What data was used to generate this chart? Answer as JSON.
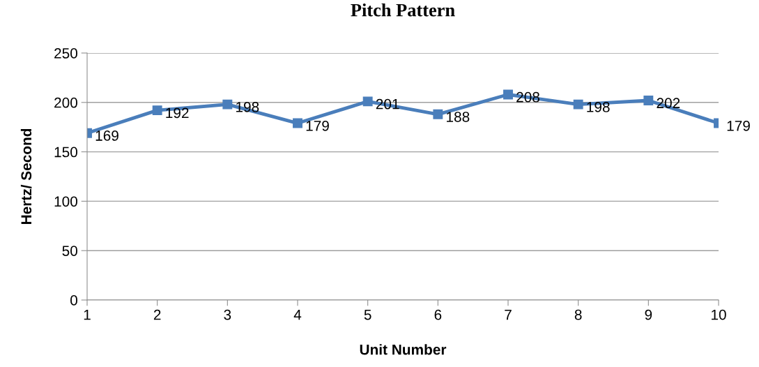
{
  "chart_data": {
    "type": "line",
    "title": "Pitch Pattern",
    "xlabel": "Unit Number",
    "ylabel": "Hertz/ Second",
    "categories": [
      "1",
      "2",
      "3",
      "4",
      "5",
      "6",
      "7",
      "8",
      "9",
      "10"
    ],
    "series": [
      {
        "color": "#4a7ebb",
        "values": [
          169,
          192,
          198,
          179,
          201,
          188,
          208,
          198,
          202,
          179
        ]
      }
    ],
    "ylim": [
      0,
      250
    ],
    "yticks": [
      0,
      50,
      100,
      150,
      200,
      250
    ],
    "grid": "y",
    "marker": "square",
    "line_style": "solid",
    "data_labels": true
  }
}
